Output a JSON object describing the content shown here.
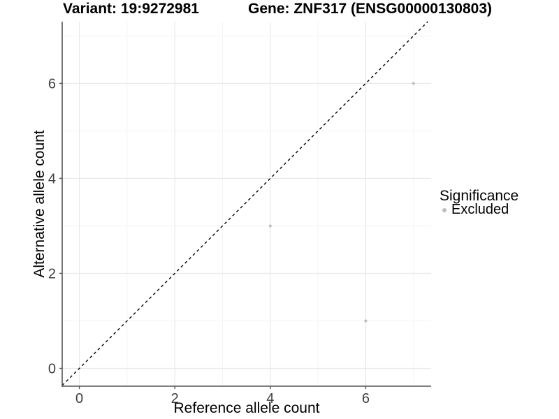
{
  "chart_data": {
    "type": "scatter",
    "title_left": "Variant: 19:9272981",
    "title_right": "Gene: ZNF317 (ENSG00000130803)",
    "xlabel": "Reference allele count",
    "ylabel": "Alternative allele count",
    "xlim": [
      -0.36,
      7.37
    ],
    "ylim": [
      -0.375,
      7.3
    ],
    "x_ticks": [
      0,
      2,
      4,
      6
    ],
    "y_ticks": [
      0,
      2,
      4,
      6
    ],
    "x_minor_gridlines": [
      1,
      3,
      5,
      7
    ],
    "y_minor_gridlines": [
      1,
      3,
      5,
      7
    ],
    "grid": true,
    "series": [
      {
        "name": "Excluded",
        "color": "#bebebe",
        "points": [
          [
            4,
            3
          ],
          [
            6,
            1
          ],
          [
            7,
            6
          ]
        ]
      }
    ],
    "reference_line": {
      "type": "identity-diagonal",
      "style": "dashed",
      "color": "#000000"
    },
    "legend": {
      "position": "right",
      "title": "Significance",
      "items": [
        {
          "label": "Excluded",
          "color": "#bebebe",
          "marker": "dot"
        }
      ]
    },
    "style": {
      "background": "#ffffff",
      "grid_major_color": "#e8e8e8",
      "grid_minor_color": "#f3f3f3",
      "axis_line_color": "#555555",
      "tick_text_color": "#404040",
      "point_color": "#bebebe"
    }
  }
}
